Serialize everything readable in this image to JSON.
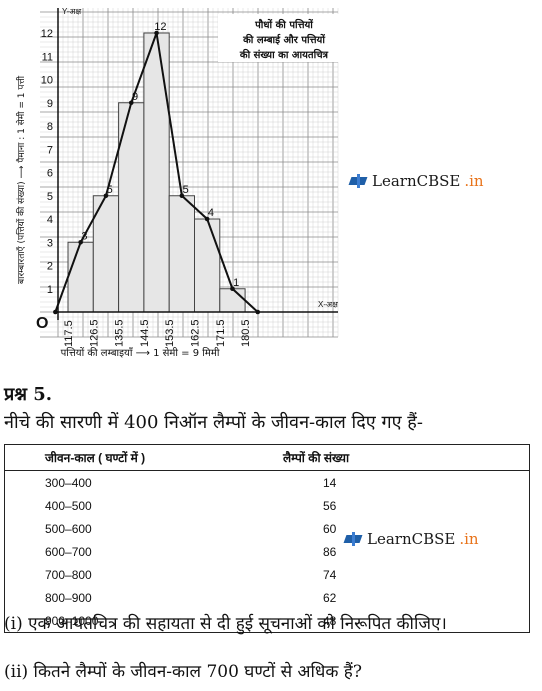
{
  "chart_data": {
    "type": "bar",
    "title": "पौधों की पत्तियों की लम्बाई और पत्तियों की संख्या का आयतचित्र",
    "xlabel": "पत्तियों की लम्बाइयाँ ⟶ 1 सेमी = 9 मिमी",
    "ylabel": "बारम्बारताएँ (पत्तियों की संख्या) ⟶ पैमाना : 1 सेमी = 1 पत्ती",
    "y_axis_name": "Y-अक्ष",
    "x_axis_name": "X-अक्ष",
    "origin_label": "O",
    "x_ticks": [
      "117.5",
      "126.5",
      "135.5",
      "144.5",
      "153.5",
      "162.5",
      "171.5",
      "180.5"
    ],
    "y_ticks": [
      "1",
      "2",
      "3",
      "4",
      "5",
      "6",
      "7",
      "8",
      "9",
      "10",
      "11",
      "12"
    ],
    "ylim": [
      0,
      12.5
    ],
    "values": [
      3,
      5,
      9,
      12,
      5,
      4,
      1
    ],
    "polygon": [
      [
        113,
        0
      ],
      [
        122,
        3
      ],
      [
        131,
        5
      ],
      [
        140,
        9
      ],
      [
        149,
        12
      ],
      [
        158,
        5
      ],
      [
        167,
        4
      ],
      [
        176,
        1
      ],
      [
        185,
        0
      ]
    ],
    "grid": true
  },
  "watermark": {
    "brand": "LearnCBSE",
    "suffix": ".in"
  },
  "question": {
    "title": "प्रश्न 5.",
    "text": "नीचे की सारणी में 400 निऑन लैम्पों के जीवन-काल दिए गए हैं-"
  },
  "table": {
    "headers": [
      "जीवन-काल ( घण्टों में )",
      "लैम्पों की संख्या"
    ],
    "rows": [
      [
        "300–400",
        "14"
      ],
      [
        "400–500",
        "56"
      ],
      [
        "500–600",
        "60"
      ],
      [
        "600–700",
        "86"
      ],
      [
        "700–800",
        "74"
      ],
      [
        "800–900",
        "62"
      ],
      [
        "900–1000",
        "48"
      ]
    ]
  },
  "parts": [
    "(i) एक आयतचित्र की सहायता से दी हुई सूचनाओं को निरूपित कीजिए।",
    "(ii) कितने लैम्पों के जीवन-काल 700 घण्टों से अधिक हैं?"
  ]
}
